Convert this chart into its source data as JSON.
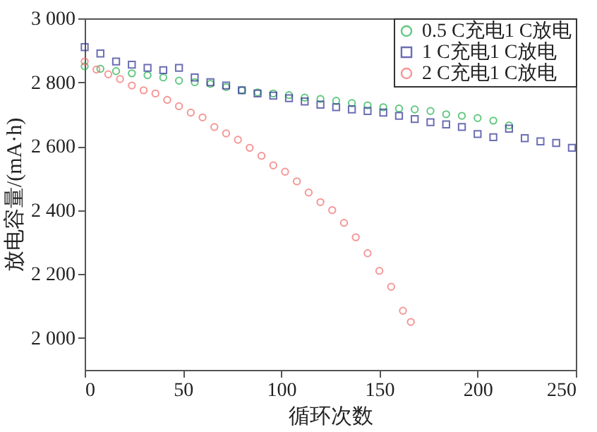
{
  "chart_data": {
    "type": "scatter",
    "xlabel": "循环次数",
    "ylabel": "放电容量/(mA·h)",
    "xlim": [
      0,
      250
    ],
    "xticks": [
      0,
      50,
      100,
      150,
      200,
      250
    ],
    "ylim": [
      1900,
      3000
    ],
    "yticks": [
      {
        "value": 2000,
        "label": "2 000"
      },
      {
        "value": 2200,
        "label": "2 200"
      },
      {
        "value": 2400,
        "label": "2 400"
      },
      {
        "value": 2600,
        "label": "2 600"
      },
      {
        "value": 2800,
        "label": "2 800"
      },
      {
        "value": 3000,
        "label": "3 000"
      }
    ],
    "grid": false,
    "legend": "top right",
    "series": [
      {
        "name": "0.5 C充电1 C放电",
        "color": "#22b14c",
        "marker": "circle",
        "x": [
          0,
          8,
          16,
          24,
          32,
          40,
          48,
          56,
          64,
          72,
          80,
          88,
          96,
          104,
          112,
          120,
          128,
          136,
          144,
          152,
          160,
          168,
          176,
          184,
          192,
          200,
          208,
          216
        ],
        "values": [
          2850,
          2842,
          2835,
          2828,
          2822,
          2815,
          2805,
          2800,
          2795,
          2785,
          2775,
          2768,
          2765,
          2760,
          2752,
          2748,
          2742,
          2735,
          2728,
          2722,
          2718,
          2715,
          2710,
          2700,
          2695,
          2688,
          2680,
          2665
        ]
      },
      {
        "name": "1 C充电1 C放电",
        "color": "#2e3192",
        "marker": "square",
        "x": [
          0,
          8,
          16,
          24,
          32,
          40,
          48,
          56,
          64,
          72,
          80,
          88,
          96,
          104,
          112,
          120,
          128,
          136,
          144,
          152,
          160,
          168,
          176,
          184,
          192,
          200,
          208,
          216,
          224,
          232,
          240,
          248
        ],
        "values": [
          2910,
          2890,
          2865,
          2855,
          2845,
          2838,
          2845,
          2815,
          2800,
          2790,
          2775,
          2765,
          2758,
          2750,
          2740,
          2730,
          2722,
          2715,
          2710,
          2705,
          2695,
          2685,
          2675,
          2668,
          2660,
          2638,
          2628,
          2655,
          2625,
          2615,
          2610,
          2595
        ]
      },
      {
        "name": "2 C充电1 C放电",
        "color": "#f26b6b",
        "marker": "circle",
        "x": [
          0,
          6,
          12,
          18,
          24,
          30,
          36,
          42,
          48,
          54,
          60,
          66,
          72,
          78,
          84,
          90,
          96,
          102,
          108,
          114,
          120,
          126,
          132,
          138,
          144,
          150,
          156,
          162,
          166
        ],
        "values": [
          2865,
          2840,
          2825,
          2810,
          2790,
          2775,
          2765,
          2745,
          2725,
          2705,
          2690,
          2660,
          2640,
          2620,
          2595,
          2570,
          2540,
          2520,
          2490,
          2455,
          2425,
          2400,
          2360,
          2315,
          2265,
          2210,
          2160,
          2085,
          2050
        ]
      }
    ]
  }
}
